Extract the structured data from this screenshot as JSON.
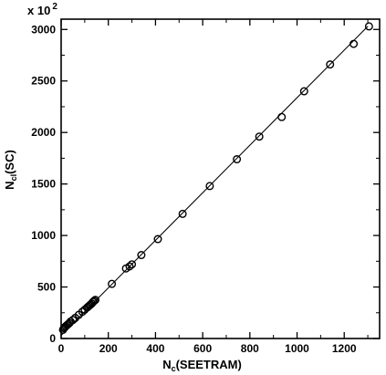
{
  "chart_data": {
    "type": "scatter",
    "title": "",
    "xlabel_main": "N",
    "xlabel_sub": "c",
    "xlabel_rest": "(SEETRAM)",
    "ylabel_main": "N",
    "ylabel_sub": "cl",
    "ylabel_rest": "(SC)",
    "y_multiplier_prefix": "x 10",
    "y_multiplier_exponent": "2",
    "xlim": [
      0,
      1350
    ],
    "ylim": [
      0,
      3100
    ],
    "x_ticks": [
      0,
      200,
      400,
      600,
      800,
      1000,
      1200
    ],
    "y_ticks": [
      0,
      500,
      1000,
      1500,
      2000,
      2500,
      3000
    ],
    "grid": false,
    "marker": "open-circle",
    "fit_line": {
      "x": [
        0,
        1300
      ],
      "y": [
        30,
        3030
      ]
    },
    "series": [
      {
        "x": [
          8,
          12,
          16,
          20,
          25,
          30,
          35,
          40,
          50,
          60,
          75,
          90,
          100,
          110,
          115,
          120,
          125,
          130,
          135,
          140,
          145,
          215,
          275,
          290,
          300,
          340,
          410,
          515,
          630,
          745,
          840,
          935,
          1030,
          1140,
          1240,
          1305
        ],
        "y": [
          85,
          100,
          110,
          120,
          130,
          140,
          150,
          165,
          180,
          200,
          230,
          260,
          280,
          300,
          310,
          320,
          330,
          340,
          355,
          365,
          375,
          530,
          680,
          700,
          720,
          810,
          965,
          1210,
          1480,
          1740,
          1960,
          2150,
          2400,
          2660,
          2860,
          3030
        ]
      }
    ]
  }
}
